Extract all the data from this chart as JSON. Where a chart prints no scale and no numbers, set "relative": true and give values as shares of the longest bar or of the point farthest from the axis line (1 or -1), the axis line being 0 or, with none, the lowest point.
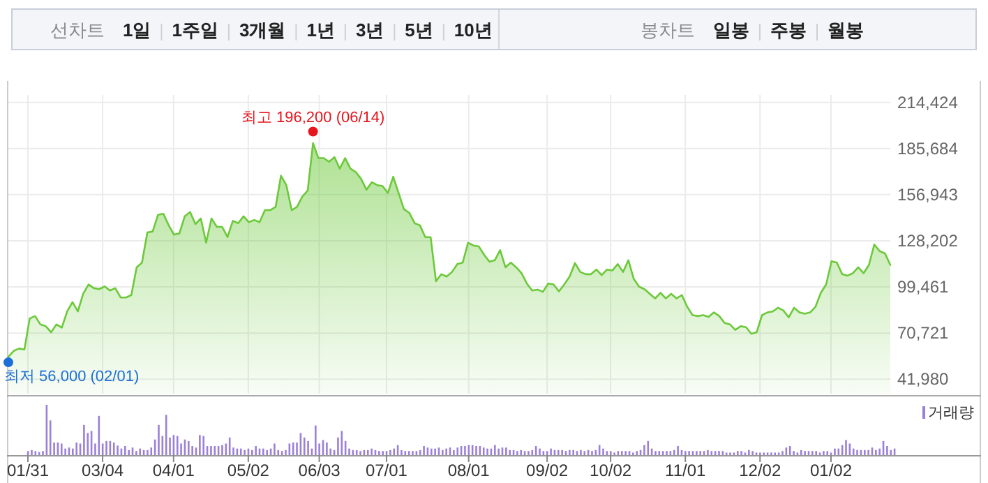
{
  "chart_data": [
    {
      "type": "other",
      "title": "선차트",
      "categories": [
        "1일",
        "1주일",
        "3개월",
        "1년",
        "3년",
        "5년",
        "10년"
      ]
    },
    {
      "type": "other",
      "title": "봉차트",
      "categories": [
        "일봉",
        "주봉",
        "월봉"
      ]
    },
    {
      "type": "area",
      "categories": [
        null,
        null,
        null,
        null,
        null,
        null,
        null,
        null,
        null,
        null,
        null,
        null,
        null,
        null,
        null,
        null,
        null,
        null,
        null,
        null,
        null,
        null,
        null,
        null,
        null,
        null,
        null,
        null,
        null,
        null,
        null,
        null,
        null,
        null,
        null,
        null,
        null,
        null,
        null,
        null,
        null,
        null,
        null,
        null,
        null,
        null,
        null,
        null,
        null,
        null,
        null,
        null,
        null,
        null,
        null,
        null,
        null,
        null,
        null,
        null,
        null,
        null,
        null,
        null,
        null,
        null,
        null,
        null,
        null,
        null,
        null,
        null,
        null,
        null,
        null,
        null,
        null,
        null,
        null,
        null,
        null,
        null,
        null,
        null,
        null,
        null,
        null,
        null,
        null,
        null,
        null,
        null,
        null,
        null,
        null,
        null,
        null,
        null,
        null,
        null,
        null,
        null,
        null,
        null,
        null,
        null,
        null,
        null,
        null,
        null,
        null,
        null,
        null,
        null,
        null,
        null,
        null,
        null,
        null,
        null,
        null,
        null,
        null,
        null,
        null,
        null,
        null,
        null,
        null,
        null,
        null,
        null,
        null,
        null,
        null,
        null,
        null,
        null,
        null,
        null,
        null,
        null,
        null,
        null,
        null,
        null,
        null,
        null,
        null,
        null,
        null,
        null,
        null,
        null,
        null,
        null,
        null,
        null,
        null,
        null,
        null,
        null,
        null,
        null,
        null,
        null
      ],
      "series": [
        {
          "color": "#6cc93a",
          "values": [
            56000,
            59600,
            61100,
            60500,
            79900,
            81300,
            76100,
            75000,
            71200,
            76100,
            74100,
            84200,
            90000,
            84200,
            95200,
            101000,
            98700,
            98100,
            99800,
            97200,
            98700,
            92900,
            92900,
            94400,
            111700,
            114600,
            133400,
            134000,
            144400,
            145000,
            137800,
            132000,
            132800,
            143500,
            146100,
            138600,
            142100,
            127000,
            142100,
            136900,
            136900,
            130500,
            140600,
            139200,
            143500,
            139800,
            141200,
            139800,
            147300,
            147300,
            149300,
            168700,
            162900,
            147300,
            149300,
            155700,
            159500,
            189000,
            179700,
            179700,
            177400,
            180300,
            173100,
            179700,
            173100,
            171000,
            166700,
            160000,
            164700,
            162900,
            162300,
            158000,
            168100,
            158000,
            147900,
            145600,
            139200,
            137800,
            130500,
            130500,
            103000,
            107400,
            105900,
            108800,
            113700,
            114600,
            127000,
            125300,
            124700,
            119500,
            115200,
            116100,
            122400,
            111700,
            114600,
            111700,
            108000,
            101600,
            97200,
            97800,
            96400,
            101600,
            101000,
            96700,
            101000,
            105900,
            114300,
            108800,
            107400,
            107400,
            110300,
            106800,
            110300,
            109700,
            113700,
            108800,
            116100,
            104500,
            99600,
            98100,
            95200,
            92300,
            95800,
            92300,
            95200,
            92300,
            94400,
            87100,
            81900,
            81300,
            81900,
            80800,
            83600,
            81300,
            77000,
            76100,
            72700,
            75000,
            74400,
            70300,
            71200,
            81900,
            83600,
            84200,
            86500,
            84800,
            80500,
            86500,
            83600,
            82800,
            83600,
            87100,
            95800,
            101000,
            115500,
            114600,
            107400,
            106500,
            108000,
            111700,
            108000,
            113200,
            125900,
            121800,
            120400,
            113200
          ]
        }
      ],
      "ylim": [
        33000,
        226000
      ],
      "yticks": [
        {
          "value": 41980,
          "label": "41,980"
        },
        {
          "value": 70721,
          "label": "70,721"
        },
        {
          "value": 99461,
          "label": "99,461"
        },
        {
          "value": 128202,
          "label": "128,202"
        },
        {
          "value": 156943,
          "label": "156,943"
        },
        {
          "value": 185684,
          "label": "185,684"
        },
        {
          "value": 214424,
          "label": "214,424"
        }
      ],
      "grid": true,
      "tick_labels": "y",
      "annotations": [
        {
          "text": "최고 196,200 (06/14)",
          "y": 196200
        },
        "최저 56,000 (02/01)"
      ]
    },
    {
      "type": "bar",
      "relative": true,
      "legend": "top right",
      "categories": [
        "01/31",
        null,
        null,
        null,
        null,
        null,
        null,
        null,
        null,
        null,
        null,
        null,
        null,
        null,
        null,
        null,
        null,
        null,
        null,
        null,
        "03/04",
        null,
        null,
        null,
        null,
        null,
        null,
        null,
        null,
        null,
        null,
        null,
        null,
        null,
        null,
        null,
        null,
        null,
        null,
        "04/01",
        null,
        null,
        null,
        null,
        null,
        null,
        null,
        null,
        null,
        null,
        null,
        null,
        null,
        null,
        null,
        null,
        null,
        null,
        null,
        "05/02",
        null,
        null,
        null,
        null,
        null,
        null,
        null,
        null,
        null,
        null,
        null,
        null,
        null,
        null,
        null,
        null,
        null,
        null,
        "06/03",
        null,
        null,
        null,
        null,
        null,
        null,
        null,
        null,
        null,
        null,
        null,
        null,
        null,
        null,
        null,
        null,
        null,
        "07/01",
        null,
        null,
        null,
        null,
        null,
        null,
        null,
        null,
        null,
        null,
        null,
        null,
        null,
        null,
        null,
        null,
        null,
        null,
        null,
        null,
        null,
        "08/01",
        null,
        null,
        null,
        null,
        null,
        null,
        null,
        null,
        null,
        null,
        null,
        null,
        null,
        null,
        null,
        null,
        null,
        null,
        null,
        null,
        "09/02",
        null,
        null,
        null,
        null,
        null,
        null,
        null,
        null,
        null,
        null,
        null,
        null,
        null,
        null,
        null,
        null,
        "10/02",
        null,
        null,
        null,
        null,
        null,
        null,
        null,
        null,
        null,
        null,
        null,
        null,
        null,
        null,
        null,
        null,
        null,
        null,
        null,
        "11/01",
        null,
        null,
        null,
        null,
        null,
        null,
        null,
        null,
        null,
        null,
        null,
        null,
        null,
        null,
        null,
        null,
        null,
        null,
        null,
        "12/02",
        null,
        null,
        null,
        null,
        null,
        null,
        null,
        null,
        null,
        null,
        null,
        null,
        null,
        null,
        null,
        null,
        null,
        null,
        "01/02",
        null,
        null,
        null,
        null,
        null,
        null,
        null,
        null,
        null,
        null,
        null,
        null,
        null,
        null,
        null,
        null,
        null
      ],
      "series": [
        {
          "name": "거래량",
          "color": "#9b80d8",
          "values": [
            0.08,
            0.1,
            0.08,
            0.06,
            0.08,
            1,
            0.69,
            0.25,
            0.25,
            0.23,
            0.13,
            0.15,
            0.13,
            0.25,
            0.23,
            0.6,
            0.44,
            0.48,
            0.23,
            0.78,
            0.23,
            0.28,
            0.28,
            0.25,
            0.19,
            0.13,
            0.18,
            0.1,
            0.15,
            0.08,
            0.13,
            0.1,
            0.1,
            0.15,
            0.31,
            0.6,
            0.38,
            0.8,
            0.35,
            0.4,
            0.38,
            0.23,
            0.31,
            0.28,
            0.18,
            0.15,
            0.4,
            0.38,
            0.18,
            0.18,
            0.18,
            0.18,
            0.2,
            0.23,
            0.35,
            0.15,
            0.13,
            0.13,
            0.1,
            0.13,
            0.1,
            0.18,
            0.13,
            0.13,
            0.1,
            0.13,
            0.23,
            0.1,
            0.08,
            0.1,
            0.23,
            0.25,
            0.25,
            0.44,
            0.35,
            0.28,
            0.13,
            0.59,
            0.23,
            0.3,
            0.25,
            0.13,
            0.1,
            0.35,
            0.48,
            0.28,
            0.13,
            0.1,
            0.1,
            0.08,
            0.1,
            0.1,
            0.13,
            0.1,
            0.08,
            0.08,
            0.08,
            0.1,
            0.13,
            0.2,
            0.1,
            0.08,
            0.08,
            0.08,
            0.08,
            0.1,
            0.18,
            0.15,
            0.13,
            0.13,
            0.15,
            0.1,
            0.13,
            0.15,
            0.1,
            0.15,
            0.18,
            0.18,
            0.2,
            0.2,
            0.18,
            0.18,
            0.15,
            0.13,
            0.13,
            0.2,
            0.13,
            0.15,
            0.15,
            0.1,
            0.1,
            0.08,
            0.1,
            0.08,
            0.08,
            0.1,
            0.18,
            0.13,
            0.08,
            0.08,
            0.13,
            0.1,
            0.1,
            0.1,
            0.08,
            0.1,
            0.1,
            0.08,
            0.1,
            0.08,
            0.1,
            0.08,
            0.1,
            0.2,
            0.13,
            0.08,
            0.08,
            0.05,
            0.08,
            0.08,
            0.08,
            0.08,
            0.05,
            0.08,
            0.1,
            0.2,
            0.28,
            0.13,
            0.08,
            0.08,
            0.08,
            0.08,
            0.08,
            0.1,
            0.18,
            0.1,
            0.08,
            0.08,
            0.08,
            0.08,
            0.08,
            0.08,
            0.1,
            0.08,
            0.08,
            0.08,
            0.08,
            0.05,
            0.05,
            0.05,
            0.08,
            0.08,
            0.05,
            0.1,
            0.08,
            0.05,
            0.05,
            0.05,
            0.05,
            0.05,
            0.05,
            0.05,
            0.08,
            0.15,
            0.18,
            0.08,
            0.05,
            0.1,
            0.08,
            0.08,
            0.08,
            0.08,
            0.05,
            0.08,
            0.08,
            0.05,
            0.13,
            0.13,
            0.2,
            0.3,
            0.23,
            0.13,
            0.1,
            0.1,
            0.1,
            0.1,
            0.15,
            0.1,
            0.13,
            0.28,
            0.18,
            0.1,
            0.13
          ]
        }
      ]
    }
  ]
}
